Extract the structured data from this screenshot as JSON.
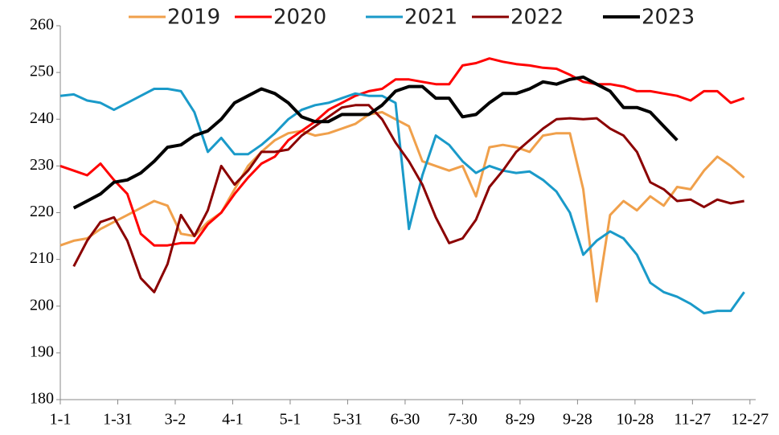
{
  "chart_data": {
    "type": "line",
    "x": [
      0,
      7,
      14,
      21,
      28,
      35,
      42,
      49,
      56,
      63,
      70,
      77,
      84,
      91,
      98,
      105,
      112,
      119,
      126,
      133,
      140,
      147,
      154,
      161,
      168,
      175,
      182,
      189,
      196,
      203,
      210,
      217,
      224,
      231,
      238,
      245,
      252,
      259,
      266,
      273,
      280,
      287,
      294,
      301,
      308,
      315,
      322,
      329,
      336,
      343,
      350,
      357
    ],
    "xlim": [
      0,
      363
    ],
    "xticks": [
      {
        "value": 0,
        "label": "1-1"
      },
      {
        "value": 30,
        "label": "1-31"
      },
      {
        "value": 60,
        "label": "3-2"
      },
      {
        "value": 90,
        "label": "4-1"
      },
      {
        "value": 120,
        "label": "5-1"
      },
      {
        "value": 150,
        "label": "5-31"
      },
      {
        "value": 180,
        "label": "6-30"
      },
      {
        "value": 210,
        "label": "7-30"
      },
      {
        "value": 240,
        "label": "8-29"
      },
      {
        "value": 270,
        "label": "9-28"
      },
      {
        "value": 300,
        "label": "10-28"
      },
      {
        "value": 330,
        "label": "11-27"
      },
      {
        "value": 360,
        "label": "12-27"
      }
    ],
    "ylim": [
      180,
      260
    ],
    "yticks": [
      180,
      190,
      200,
      210,
      220,
      230,
      240,
      250,
      260
    ],
    "grid": false,
    "legend": "top",
    "series": [
      {
        "name": "2019",
        "color": "#f0a04b",
        "values": [
          213,
          214,
          214.5,
          216.5,
          218,
          219.5,
          221,
          222.5,
          221.5,
          215.5,
          215,
          218,
          220,
          225,
          230,
          233,
          235.5,
          237,
          237.5,
          236.5,
          237,
          238,
          239,
          241,
          241.5,
          240,
          238.5,
          231,
          230,
          229,
          230,
          223.5,
          234,
          234.5,
          234,
          233,
          236.5,
          237,
          237,
          225,
          201,
          219.5,
          222.5,
          220.5,
          223.5,
          221.5,
          225.5,
          225,
          229,
          232,
          230,
          227.5
        ]
      },
      {
        "name": "2020",
        "color": "#ff0000",
        "values": [
          230,
          229,
          228,
          230.5,
          227,
          224,
          215.5,
          213,
          213,
          213.5,
          213.5,
          217.5,
          220,
          224,
          227.5,
          230.5,
          232,
          235.5,
          237.5,
          239.5,
          242,
          243.5,
          245,
          246,
          246.5,
          248.5,
          248.5,
          248,
          247.5,
          247.5,
          251.5,
          252,
          253,
          252.3,
          251.8,
          251.5,
          251,
          250.8,
          249.5,
          248,
          247.5,
          247.5,
          247,
          246,
          246,
          245.5,
          245,
          244,
          246,
          246,
          243.5,
          244.5
        ]
      },
      {
        "name": "2021",
        "color": "#1a9ac9",
        "values": [
          245,
          245.3,
          244,
          243.5,
          242,
          243.5,
          245,
          246.5,
          246.5,
          246,
          241.5,
          233,
          236,
          232.5,
          232.5,
          234.5,
          237,
          240,
          242,
          243,
          243.5,
          244.5,
          245.5,
          245,
          245,
          243.5,
          216.5,
          228,
          236.5,
          234.5,
          231,
          228.5,
          230,
          229,
          228.5,
          228.8,
          227,
          224.5,
          220,
          211,
          214,
          216,
          214.5,
          211,
          205,
          203,
          202,
          200.5,
          198.5,
          199,
          199,
          203
        ]
      },
      {
        "name": "2022",
        "color": "#8b0000",
        "values": [
          null,
          208.5,
          214,
          218,
          219,
          214,
          206,
          203,
          209,
          219.5,
          215,
          220.5,
          230,
          226,
          229,
          233,
          233,
          233.5,
          236.5,
          238.5,
          240.5,
          242.5,
          243,
          243,
          240,
          235,
          231,
          226,
          219,
          213.5,
          214.5,
          218.5,
          225.5,
          229,
          233,
          235.5,
          238,
          240,
          240.2,
          240,
          240.2,
          238,
          236.5,
          233,
          226.5,
          225,
          222.5,
          222.8,
          221.2,
          222.8,
          222,
          222.5
        ]
      },
      {
        "name": "2023",
        "color": "#000000",
        "values": [
          null,
          221,
          222.5,
          224,
          226.5,
          227,
          228.5,
          231,
          234,
          234.5,
          236.5,
          237.5,
          240,
          243.5,
          245,
          246.5,
          245.5,
          243.5,
          240.5,
          239.5,
          239.5,
          241,
          241,
          241,
          243,
          246,
          247,
          247,
          244.5,
          244.5,
          240.5,
          241,
          243.5,
          245.5,
          245.5,
          246.5,
          248,
          247.5,
          248.5,
          249,
          247.5,
          246,
          242.5,
          242.5,
          241.5,
          238.5,
          235.5,
          null,
          null,
          null,
          null,
          null
        ]
      }
    ]
  }
}
